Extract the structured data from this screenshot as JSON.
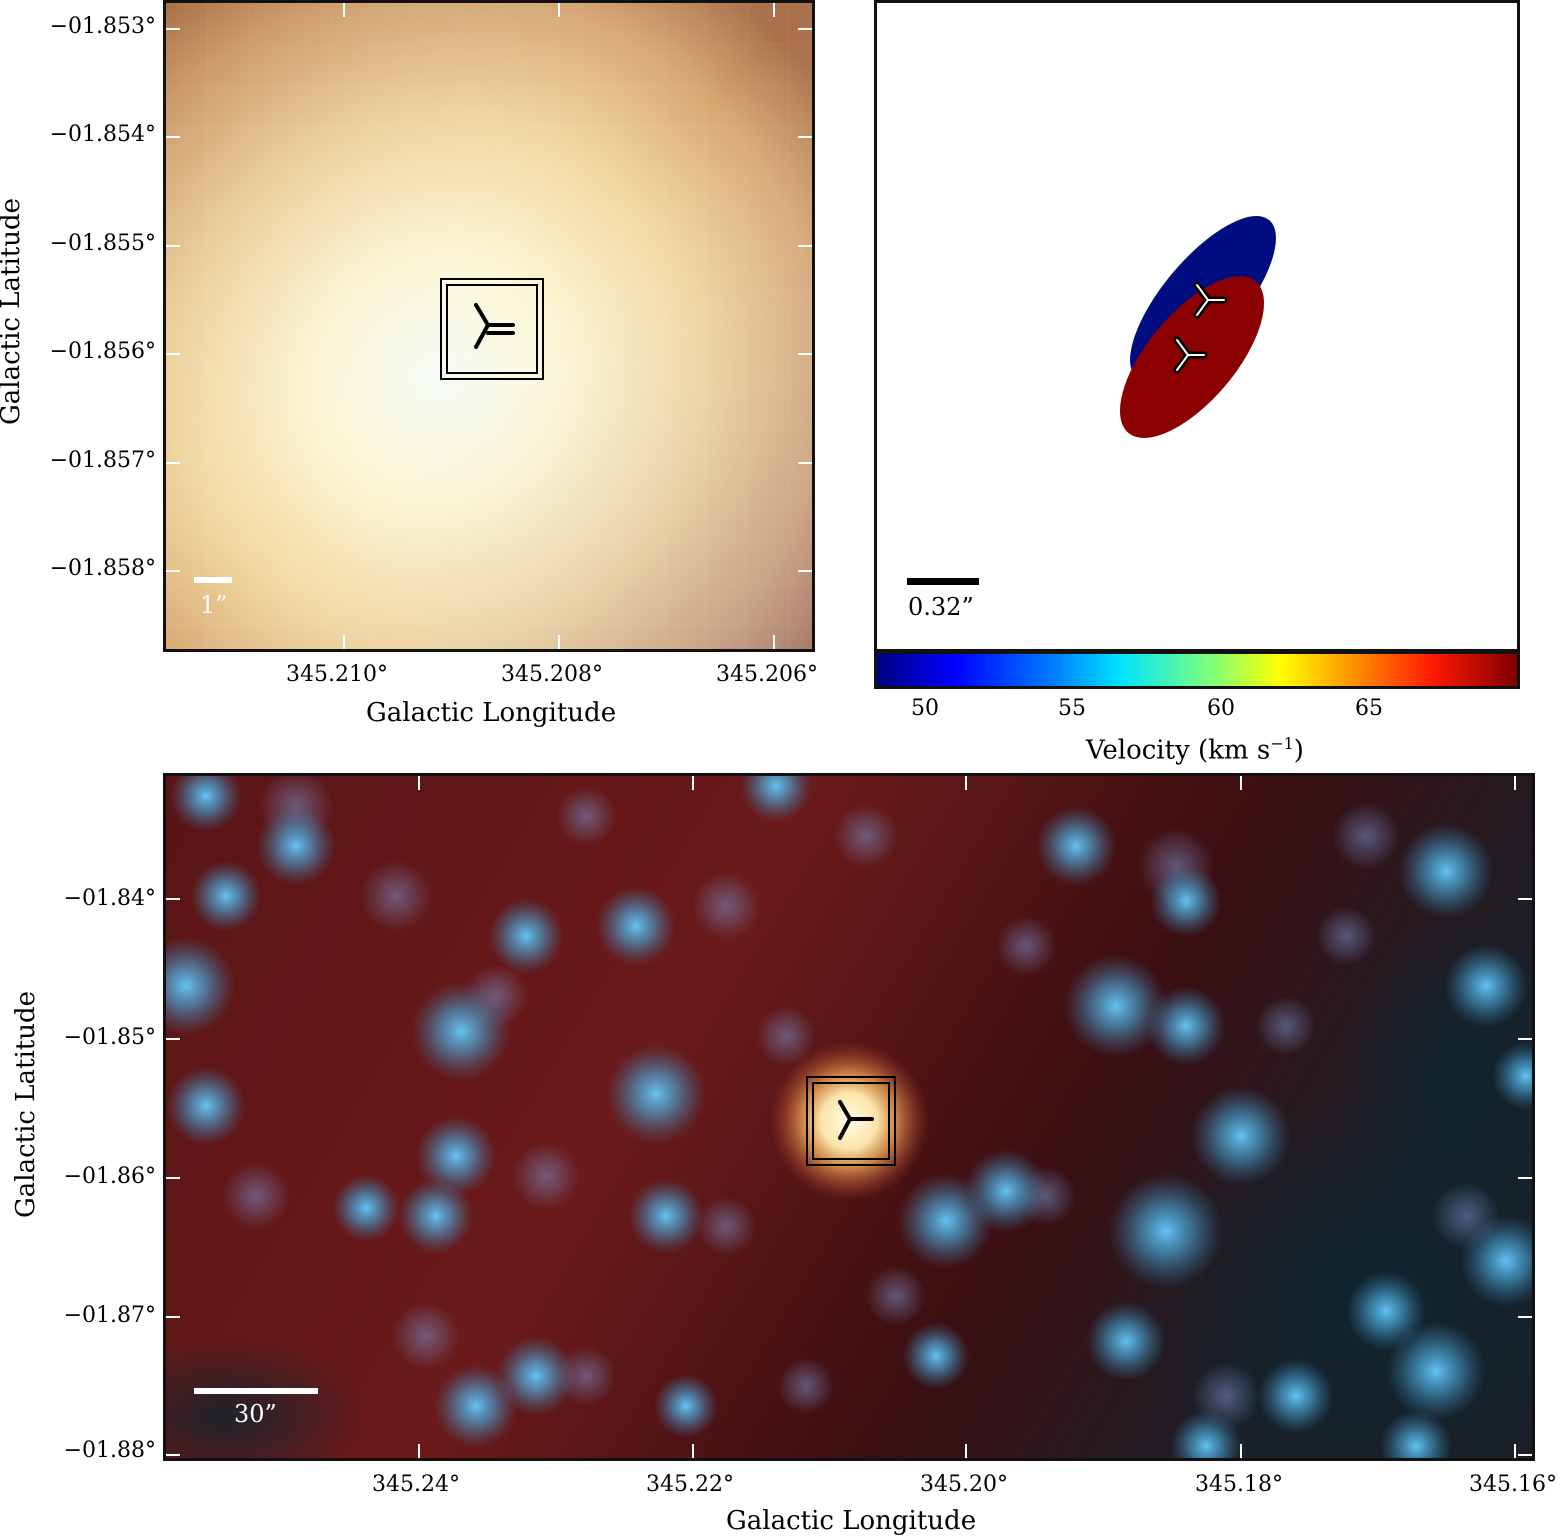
{
  "top_left": {
    "y_ticks": [
      "−01.853°",
      "−01.854°",
      "−01.855°",
      "−01.856°",
      "−01.857°",
      "−01.858°"
    ],
    "x_ticks": [
      "345.210°",
      "345.208°",
      "345.206°"
    ],
    "ylabel": "Galactic Latitude",
    "xlabel": "Galactic Longitude",
    "scalebar": "1”"
  },
  "top_right": {
    "scalebar": "0.32”",
    "colorbar_ticks": [
      "50",
      "55",
      "60",
      "65"
    ],
    "colorbar_label_main": "Velocity (km s",
    "colorbar_label_sup": "−1",
    "colorbar_label_end": ")",
    "colors": {
      "blue_ellipse": "#000d80",
      "red_ellipse": "#8b0000"
    }
  },
  "bottom": {
    "y_ticks": [
      "−01.84°",
      "−01.85°",
      "−01.86°",
      "−01.87°",
      "−01.88°"
    ],
    "x_ticks": [
      "345.24°",
      "345.22°",
      "345.20°",
      "345.18°",
      "345.16°"
    ],
    "ylabel": "Galactic Latitude",
    "xlabel": "Galactic Longitude",
    "scalebar": "30”"
  }
}
